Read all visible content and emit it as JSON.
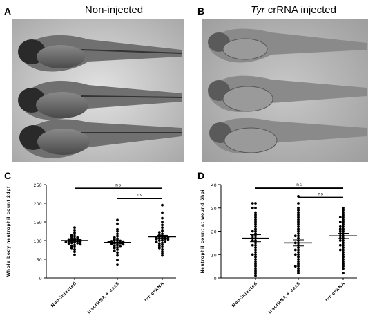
{
  "panels": {
    "A": {
      "letter": "A",
      "title": "Non-injected"
    },
    "B": {
      "letter": "B",
      "title_italic": "Tyr",
      "title_rest": " crRNA injected"
    },
    "C": {
      "letter": "C"
    },
    "D": {
      "letter": "D"
    }
  },
  "colors": {
    "background_a": "#d0d0d0",
    "background_b": "#bdbdbd",
    "embryo": "#3a3a3a",
    "points": "#000000"
  },
  "chart_data": [
    {
      "panel": "C",
      "type": "scatter",
      "ylabel": "Whole body neutrophil count 2dpf",
      "ylim": [
        0,
        250
      ],
      "yticks": [
        0,
        50,
        100,
        150,
        200,
        250
      ],
      "categories": [
        "Non-injected",
        "tracrRNA + cas9",
        "tyr crRNA"
      ],
      "category_italic_prefix": [
        "",
        "",
        "tyr"
      ],
      "category_rest": [
        "Non-injected",
        "tracrRNA + cas9",
        " crRNA"
      ],
      "series": [
        {
          "values": [
            135,
            128,
            122,
            118,
            115,
            112,
            110,
            108,
            106,
            105,
            104,
            103,
            102,
            101,
            100,
            99,
            98,
            97,
            96,
            95,
            94,
            93,
            92,
            90,
            88,
            86,
            83,
            80,
            76,
            70,
            62
          ],
          "mean": 100,
          "sem": 3
        },
        {
          "values": [
            155,
            145,
            130,
            125,
            118,
            112,
            108,
            105,
            103,
            101,
            100,
            99,
            98,
            97,
            96,
            95,
            94,
            93,
            92,
            90,
            88,
            86,
            84,
            82,
            80,
            76,
            72,
            68,
            60,
            48,
            35
          ],
          "mean": 95,
          "sem": 4
        },
        {
          "values": [
            195,
            175,
            160,
            150,
            142,
            135,
            128,
            125,
            122,
            118,
            115,
            113,
            111,
            110,
            109,
            108,
            107,
            106,
            105,
            104,
            103,
            101,
            100,
            98,
            96,
            94,
            92,
            89,
            86,
            83,
            80,
            76,
            70,
            65,
            60
          ],
          "mean": 110,
          "sem": 4
        }
      ],
      "significance": [
        {
          "from": 0,
          "to": 2,
          "label": "ns",
          "y": 240
        },
        {
          "from": 1,
          "to": 2,
          "label": "ns",
          "y": 213
        }
      ]
    },
    {
      "panel": "D",
      "type": "scatter",
      "ylabel": "Neutrophil count at wound 6hpi",
      "ylim": [
        0,
        40
      ],
      "yticks": [
        0,
        10,
        20,
        30,
        40
      ],
      "categories": [
        "Non-injected",
        "tracrRNA + cas9",
        "tyr crRNA"
      ],
      "category_italic_prefix": [
        "",
        "",
        "tyr"
      ],
      "category_rest": [
        "Non-injected",
        "tracrRNA + cas9",
        " crRNA"
      ],
      "series": [
        {
          "values": [
            32,
            32,
            30,
            30,
            28,
            27,
            26,
            25,
            24,
            23,
            22,
            21,
            20,
            20,
            19,
            18,
            18,
            17,
            17,
            16,
            16,
            15,
            14,
            14,
            13,
            12,
            11,
            10,
            10,
            9,
            8,
            7,
            6,
            5,
            4,
            3,
            2,
            1
          ],
          "mean": 17,
          "sem": 1.5
        },
        {
          "values": [
            35,
            32,
            30,
            29,
            28,
            27,
            26,
            25,
            24,
            23,
            22,
            21,
            20,
            19,
            18,
            18,
            17,
            16,
            15,
            15,
            14,
            13,
            12,
            12,
            11,
            10,
            10,
            9,
            8,
            7,
            6,
            5,
            5,
            4,
            3,
            2
          ],
          "mean": 15,
          "sem": 1.3
        },
        {
          "values": [
            30,
            29,
            28,
            27,
            26,
            26,
            25,
            24,
            24,
            23,
            22,
            22,
            21,
            21,
            20,
            20,
            19,
            19,
            18,
            18,
            17,
            17,
            16,
            16,
            15,
            14,
            14,
            13,
            12,
            12,
            11,
            10,
            9,
            8,
            7,
            6,
            5,
            4,
            2
          ],
          "mean": 18,
          "sem": 1.1
        }
      ],
      "significance": [
        {
          "from": 0,
          "to": 2,
          "label": "ns",
          "y": 38.5
        },
        {
          "from": 1,
          "to": 2,
          "label": "ns",
          "y": 34.5
        }
      ]
    }
  ]
}
